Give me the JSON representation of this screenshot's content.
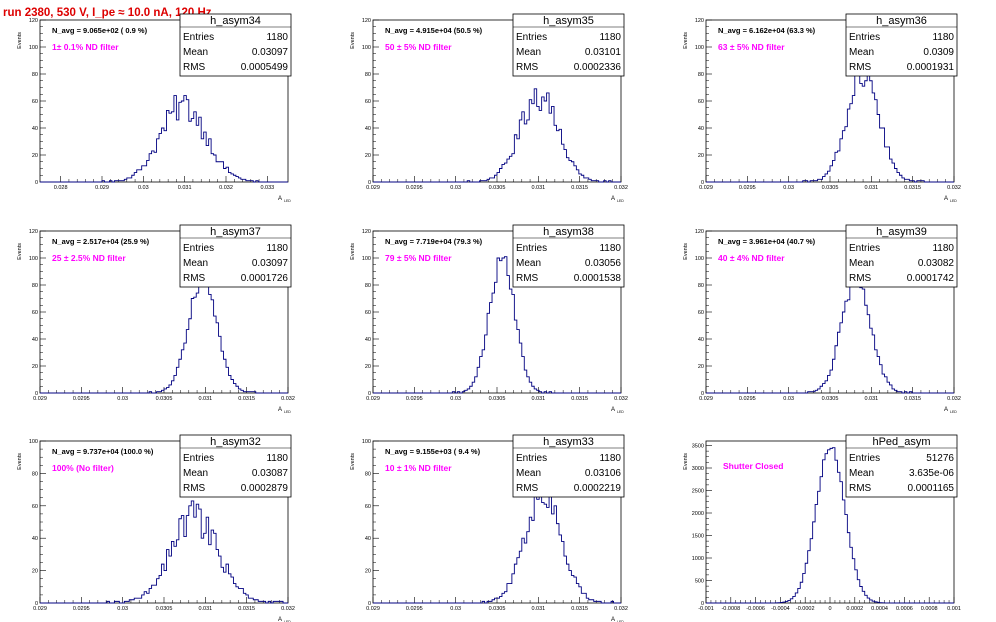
{
  "page": {
    "run_title": "run 2380,   530 V, I_pe ≈ 10.0 nA, 120 Hz"
  },
  "colors": {
    "hist": "#000080",
    "filter_text": "#ff00ff",
    "title": "#dd0000"
  },
  "chart_data": [
    {
      "type": "bar",
      "name": "h_asym34",
      "navg": "N_avg = 9.065e+02 ( 0.9 %)",
      "filter": "1± 0.1% ND filter",
      "stats": {
        "entries": "1180",
        "mean": "0.03097",
        "rms": "0.0005499"
      },
      "ylabel": "Events",
      "xlabel": "A",
      "xsub": "LED",
      "xlim": [
        0.0275,
        0.0335
      ],
      "ylim": [
        0,
        120
      ],
      "xticks": [
        "0.028",
        "0.029",
        "0.03",
        "0.031",
        "0.032",
        "0.033"
      ],
      "yticks": [
        "0",
        "20",
        "40",
        "60",
        "80",
        "100",
        "120"
      ],
      "dist": {
        "mu": 0.03097,
        "sigma": 0.0005499,
        "peak": 57,
        "noise": 0.2
      }
    },
    {
      "type": "bar",
      "name": "h_asym35",
      "navg": "N_avg = 4.915e+04 (50.5 %)",
      "filter": "50 ± 5% ND filter",
      "stats": {
        "entries": "1180",
        "mean": "0.03101",
        "rms": "0.0002336"
      },
      "ylabel": "Events",
      "xlabel": "A",
      "xsub": "LED",
      "xlim": [
        0.029,
        0.032
      ],
      "ylim": [
        0,
        120
      ],
      "xticks": [
        "0.029",
        "0.0295",
        "0.03",
        "0.0305",
        "0.031",
        "0.0315",
        "0.032"
      ],
      "yticks": [
        "0",
        "20",
        "40",
        "60",
        "80",
        "100",
        "120"
      ],
      "dist": {
        "mu": 0.03101,
        "sigma": 0.0002336,
        "peak": 64,
        "noise": 0.18
      }
    },
    {
      "type": "bar",
      "name": "h_asym36",
      "navg": "N_avg = 6.162e+04 (63.3 %)",
      "filter": "63 ± 5% ND filter",
      "stats": {
        "entries": "1180",
        "mean": "0.0309",
        "rms": "0.0001931"
      },
      "ylabel": "Events",
      "xlabel": "A",
      "xsub": "LED",
      "xlim": [
        0.029,
        0.032
      ],
      "ylim": [
        0,
        120
      ],
      "xticks": [
        "0.029",
        "0.0295",
        "0.03",
        "0.0305",
        "0.031",
        "0.0315",
        "0.032"
      ],
      "yticks": [
        "0",
        "20",
        "40",
        "60",
        "80",
        "100",
        "120"
      ],
      "dist": {
        "mu": 0.0309,
        "sigma": 0.0001931,
        "peak": 80,
        "noise": 0.12
      }
    },
    {
      "type": "bar",
      "name": "h_asym37",
      "navg": "N_avg = 2.517e+04 (25.9 %)",
      "filter": "25 ± 2.5% ND filter",
      "stats": {
        "entries": "1180",
        "mean": "0.03097",
        "rms": "0.0001726"
      },
      "ylabel": "Events",
      "xlabel": "A",
      "xsub": "LED",
      "xlim": [
        0.029,
        0.032
      ],
      "ylim": [
        0,
        120
      ],
      "xticks": [
        "0.029",
        "0.0295",
        "0.03",
        "0.0305",
        "0.031",
        "0.0315",
        "0.032"
      ],
      "yticks": [
        "0",
        "20",
        "40",
        "60",
        "80",
        "100",
        "120"
      ],
      "dist": {
        "mu": 0.03097,
        "sigma": 0.0001726,
        "peak": 85,
        "noise": 0.08
      }
    },
    {
      "type": "bar",
      "name": "h_asym38",
      "navg": "N_avg = 7.719e+04 (79.3 %)",
      "filter": "79 ± 5% ND filter",
      "stats": {
        "entries": "1180",
        "mean": "0.03056",
        "rms": "0.0001538"
      },
      "ylabel": "Events",
      "xlabel": "A",
      "xsub": "LED",
      "xlim": [
        0.029,
        0.032
      ],
      "ylim": [
        0,
        120
      ],
      "xticks": [
        "0.029",
        "0.0295",
        "0.03",
        "0.0305",
        "0.031",
        "0.0315",
        "0.032"
      ],
      "yticks": [
        "0",
        "20",
        "40",
        "60",
        "80",
        "100",
        "120"
      ],
      "dist": {
        "mu": 0.03056,
        "sigma": 0.0001538,
        "peak": 100,
        "noise": 0.08
      }
    },
    {
      "type": "bar",
      "name": "h_asym39",
      "navg": "N_avg = 3.961e+04 (40.7 %)",
      "filter": "40 ± 4% ND filter",
      "stats": {
        "entries": "1180",
        "mean": "0.03082",
        "rms": "0.0001742"
      },
      "ylabel": "Events",
      "xlabel": "A",
      "xsub": "LED",
      "xlim": [
        0.029,
        0.032
      ],
      "ylim": [
        0,
        120
      ],
      "xticks": [
        "0.029",
        "0.0295",
        "0.03",
        "0.0305",
        "0.031",
        "0.0315",
        "0.032"
      ],
      "yticks": [
        "0",
        "20",
        "40",
        "60",
        "80",
        "100",
        "120"
      ],
      "dist": {
        "mu": 0.03082,
        "sigma": 0.0001742,
        "peak": 88,
        "noise": 0.1
      }
    },
    {
      "type": "bar",
      "name": "h_asym32",
      "navg": "N_avg = 9.737e+04 (100.0 %)",
      "filter": "100% (No filter)",
      "stats": {
        "entries": "1180",
        "mean": "0.03087",
        "rms": "0.0002879"
      },
      "ylabel": "Events",
      "xlabel": "A",
      "xsub": "LED",
      "xlim": [
        0.029,
        0.032
      ],
      "ylim": [
        0,
        100
      ],
      "xticks": [
        "0.029",
        "0.0295",
        "0.03",
        "0.0305",
        "0.031",
        "0.0315",
        "0.032"
      ],
      "yticks": [
        "0",
        "20",
        "40",
        "60",
        "80",
        "100"
      ],
      "dist": {
        "mu": 0.03087,
        "sigma": 0.0002879,
        "peak": 52,
        "noise": 0.22
      }
    },
    {
      "type": "bar",
      "name": "h_asym33",
      "navg": "N_avg = 9.155e+03 ( 9.4 %)",
      "filter": "10 ± 1% ND filter",
      "stats": {
        "entries": "1180",
        "mean": "0.03106",
        "rms": "0.0002219"
      },
      "ylabel": "Events",
      "xlabel": "A",
      "xsub": "LED",
      "xlim": [
        0.029,
        0.032
      ],
      "ylim": [
        0,
        100
      ],
      "xticks": [
        "0.029",
        "0.0295",
        "0.03",
        "0.0305",
        "0.031",
        "0.0315",
        "0.032"
      ],
      "yticks": [
        "0",
        "20",
        "40",
        "60",
        "80",
        "100"
      ],
      "dist": {
        "mu": 0.03106,
        "sigma": 0.0002219,
        "peak": 68,
        "noise": 0.15
      }
    },
    {
      "type": "bar",
      "name": "hPed_asym",
      "navg": "",
      "filter": "Shutter Closed",
      "stats": {
        "entries": "51276",
        "mean": "3.635e-06",
        "rms": "0.0001165"
      },
      "ylabel": "Events",
      "xlabel": "",
      "xsub": "",
      "xlim": [
        -0.001,
        0.001
      ],
      "ylim": [
        0,
        3600
      ],
      "xticks": [
        "-0.001",
        "-0.0008",
        "-0.0006",
        "-0.0004",
        "-0.0002",
        "0",
        "0.0002",
        "0.0004",
        "0.0006",
        "0.0008",
        "0.001"
      ],
      "yticks": [
        "0",
        "500",
        "1000",
        "1500",
        "2000",
        "2500",
        "3000",
        "3500"
      ],
      "dist": {
        "mu": 3.635e-06,
        "sigma": 0.0001165,
        "peak": 3480,
        "noise": 0.02
      }
    }
  ]
}
